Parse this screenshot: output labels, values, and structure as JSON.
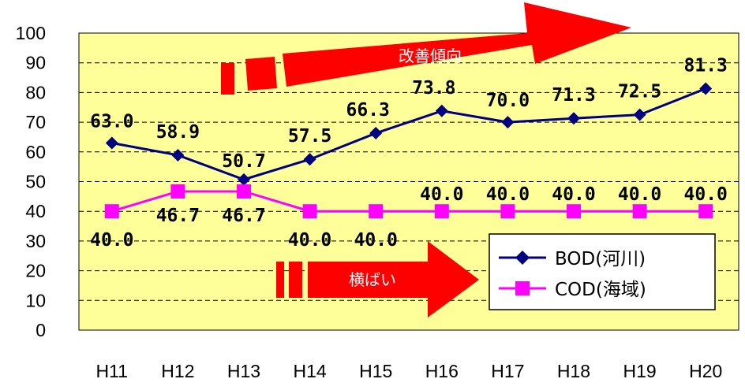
{
  "chart_data": {
    "type": "line",
    "categories": [
      "H11",
      "H12",
      "H13",
      "H14",
      "H15",
      "H16",
      "H17",
      "H18",
      "H19",
      "H20"
    ],
    "ylim": [
      0,
      100
    ],
    "yticks": [
      0,
      10,
      20,
      30,
      40,
      50,
      60,
      70,
      80,
      90,
      100
    ],
    "grid": true,
    "legend_position": "bottom-right",
    "series": [
      {
        "name": "BOD(河川)",
        "color": "#000080",
        "marker": "diamond",
        "values": [
          63.0,
          58.9,
          50.7,
          57.5,
          66.3,
          73.8,
          70.0,
          71.3,
          72.5,
          81.3
        ],
        "labels": [
          "63.0",
          "58.9",
          "50.7",
          "57.5",
          "66.3",
          "73.8",
          "70.0",
          "71.3",
          "72.5",
          "81.3"
        ]
      },
      {
        "name": "COD(海域)",
        "color": "#ff00ff",
        "marker": "square",
        "values": [
          40.0,
          46.7,
          46.7,
          40.0,
          40.0,
          40.0,
          40.0,
          40.0,
          40.0,
          40.0
        ],
        "labels": [
          "40.0",
          "46.7",
          "46.7",
          "40.0",
          "40.0",
          "40.0",
          "40.0",
          "40.0",
          "40.0",
          "40.0"
        ]
      }
    ],
    "annotations": [
      {
        "text": "改善傾向",
        "icon": "red-arrow-up-right"
      },
      {
        "text": "横ばい",
        "icon": "red-arrow-right"
      }
    ],
    "colors": {
      "plot_background": "#ffff99",
      "arrow": "#ff0000",
      "grid": "#000000"
    }
  }
}
